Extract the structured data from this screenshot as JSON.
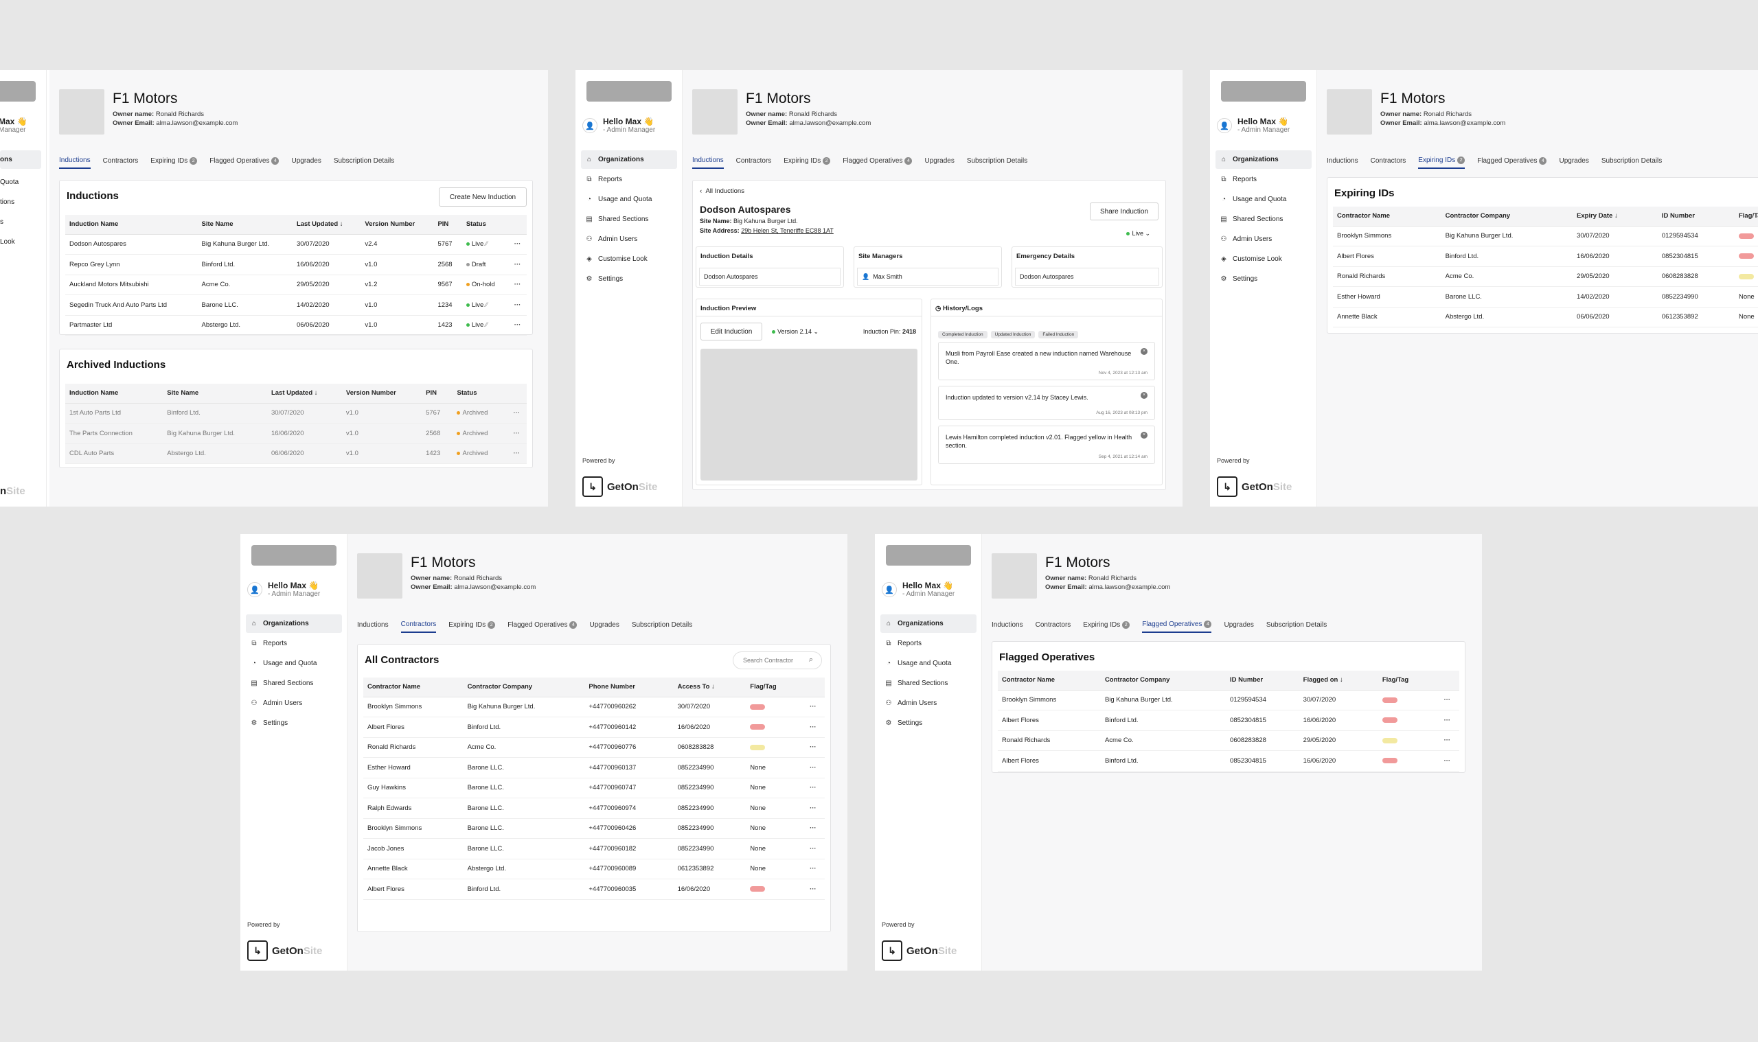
{
  "common": {
    "hello": "Hello Max 👋",
    "role": "- Admin Manager",
    "powered_by": "Powered by",
    "brand_get": "GetOn",
    "brand_site": "Site",
    "org_title": "F1 Motors",
    "owner_name_label": "Owner name:",
    "owner_name": "Ronald Richards",
    "owner_email_label": "Owner Email:",
    "owner_email": "alma.lawson@example.com",
    "tabs": [
      "Inductions",
      "Contractors",
      "Expiring IDs",
      "Flagged Operatives",
      "Upgrades",
      "Subscription Details"
    ],
    "expiring_count": "2",
    "flagged_count": "4",
    "nav": [
      "Organizations",
      "Reports",
      "Usage and Quota",
      "Shared Sections",
      "Admin Users",
      "Customise Look",
      "Settings"
    ],
    "partial_nav": [
      "ons",
      "Quota",
      "tions",
      "s",
      "Look"
    ],
    "partial_hello": "Max 👋",
    "partial_role": "Manager",
    "partial_brand_on": "n",
    "partial_brand_site": "Site",
    "colors": {
      "accent": "#1c3d8f",
      "live": "#3dbb4d",
      "draft": "#9a9a9a",
      "onhold": "#f0a020",
      "archived": "#f0a020",
      "flag_red": "#f19a9a",
      "flag_yellow": "#f3e9a1"
    }
  },
  "inductions_screen": {
    "title": "Inductions",
    "create_button": "Create New Induction",
    "columns": [
      "Induction Name",
      "Site Name",
      "Last Updated ↓",
      "Version Number",
      "PIN",
      "Status"
    ],
    "rows": [
      [
        "Dodson Autospares",
        "Big Kahuna Burger Ltd.",
        "30/07/2020",
        "v2.4",
        "5767",
        "Live"
      ],
      [
        "Repco Grey Lynn",
        "Binford Ltd.",
        "16/06/2020",
        "v1.0",
        "2568",
        "Draft"
      ],
      [
        "Auckland Motors Mitsubishi",
        "Acme Co.",
        "29/05/2020",
        "v1.2",
        "9567",
        "On-hold"
      ],
      [
        "Segedin Truck And Auto Parts Ltd",
        "Barone LLC.",
        "14/02/2020",
        "v1.0",
        "1234",
        "Live"
      ],
      [
        "Partmaster Ltd",
        "Abstergo Ltd.",
        "06/06/2020",
        "v1.0",
        "1423",
        "Live"
      ]
    ],
    "archived_title": "Archived Inductions",
    "archived_rows": [
      [
        "1st Auto Parts Ltd",
        "Binford Ltd.",
        "30/07/2020",
        "v1.0",
        "5767",
        "Archived"
      ],
      [
        "The Parts Connection",
        "Big Kahuna Burger Ltd.",
        "16/06/2020",
        "v1.0",
        "2568",
        "Archived"
      ],
      [
        "CDL Auto Parts",
        "Abstergo Ltd.",
        "06/06/2020",
        "v1.0",
        "1423",
        "Archived"
      ]
    ]
  },
  "detail_screen": {
    "back": "All Inductions",
    "title": "Dodson Autospares",
    "site_name_label": "Site Name:",
    "site_name": "Big Kahuna Burger Ltd.",
    "site_address_label": "Site Address:",
    "site_address": "29b Helen St, Teneriffe EC88 1AT",
    "share_button": "Share Induction",
    "status": "Live",
    "induction_details_label": "Induction Details",
    "induction_details_value": "Dodson Autospares",
    "site_managers_label": "Site Managers",
    "site_managers_value": "Max Smith",
    "emergency_label": "Emergency Details",
    "emergency_value": "Dodson Autospares",
    "preview_label": "Induction Preview",
    "edit_button": "Edit Induction",
    "version": "Version 2.14",
    "pin_label": "Induction Pin:",
    "pin": "2418",
    "history_label": "History/Logs",
    "chips": [
      "Completed Induction",
      "Updated Induction",
      "Failed Induction"
    ],
    "logs": [
      {
        "text": "Musli from Payroll Ease created a new induction named Warehouse One.",
        "date": "Nov 4, 2023 at 12:13 am"
      },
      {
        "text": "Induction updated to version v2.14 by Stacey Lewis.",
        "date": "Aug 16, 2023 at 08:13 pm"
      },
      {
        "text": "Lewis Hamilton completed induction v2.01. Flagged yellow in Health section.",
        "date": "Sep 4, 2021 at 12:14 am"
      }
    ]
  },
  "expiring_screen": {
    "title": "Expiring IDs",
    "columns": [
      "Contractor Name",
      "Contractor Company",
      "Expiry Date ↓",
      "ID Number",
      "Flag/Tag"
    ],
    "rows": [
      [
        "Brooklyn Simmons",
        "Big Kahuna Burger Ltd.",
        "30/07/2020",
        "0129594534",
        "red"
      ],
      [
        "Albert Flores",
        "Binford Ltd.",
        "16/06/2020",
        "0852304815",
        "red"
      ],
      [
        "Ronald Richards",
        "Acme Co.",
        "29/05/2020",
        "0608283828",
        "yellow"
      ],
      [
        "Esther Howard",
        "Barone LLC.",
        "14/02/2020",
        "0852234990",
        "None"
      ],
      [
        "Annette Black",
        "Abstergo Ltd.",
        "06/06/2020",
        "0612353892",
        "None"
      ]
    ]
  },
  "contractors_screen": {
    "title": "All Contractors",
    "search_placeholder": "Search Contractor",
    "columns": [
      "Contractor Name",
      "Contractor Company",
      "Phone Number",
      "Access To ↓",
      "Flag/Tag"
    ],
    "rows": [
      [
        "Brooklyn Simmons",
        "Big Kahuna Burger Ltd.",
        "+447700960262",
        "30/07/2020",
        "red"
      ],
      [
        "Albert Flores",
        "Binford Ltd.",
        "+447700960142",
        "16/06/2020",
        "red"
      ],
      [
        "Ronald Richards",
        "Acme Co.",
        "+447700960776",
        "0608283828",
        "yellow"
      ],
      [
        "Esther Howard",
        "Barone LLC.",
        "+447700960137",
        "0852234990",
        "None"
      ],
      [
        "Guy Hawkins",
        "Barone LLC.",
        "+447700960747",
        "0852234990",
        "None"
      ],
      [
        "Ralph Edwards",
        "Barone LLC.",
        "+447700960974",
        "0852234990",
        "None"
      ],
      [
        "Brooklyn Simmons",
        "Barone LLC.",
        "+447700960426",
        "0852234990",
        "None"
      ],
      [
        "Jacob Jones",
        "Barone LLC.",
        "+447700960182",
        "0852234990",
        "None"
      ],
      [
        "Annette Black",
        "Abstergo Ltd.",
        "+447700960089",
        "0612353892",
        "None"
      ],
      [
        "Albert Flores",
        "Binford Ltd.",
        "+447700960035",
        "16/06/2020",
        "red"
      ]
    ]
  },
  "flagged_screen": {
    "title": "Flagged Operatives",
    "columns": [
      "Contractor Name",
      "Contractor Company",
      "ID Number",
      "Flagged on ↓",
      "Flag/Tag"
    ],
    "rows": [
      [
        "Brooklyn Simmons",
        "Big Kahuna Burger Ltd.",
        "0129594534",
        "30/07/2020",
        "red"
      ],
      [
        "Albert Flores",
        "Binford Ltd.",
        "0852304815",
        "16/06/2020",
        "red"
      ],
      [
        "Ronald Richards",
        "Acme Co.",
        "0608283828",
        "29/05/2020",
        "yellow"
      ],
      [
        "Albert Flores",
        "Binford Ltd.",
        "0852304815",
        "16/06/2020",
        "red"
      ]
    ]
  }
}
